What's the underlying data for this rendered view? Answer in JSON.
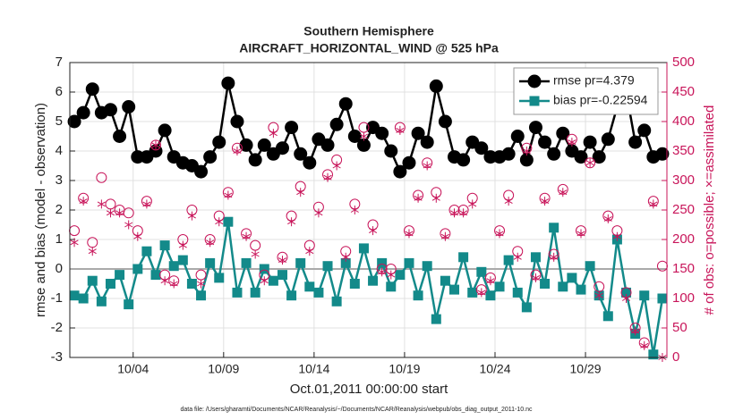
{
  "chart_data": {
    "type": "line",
    "title": "Southern Hemisphere",
    "subtitle": "AIRCRAFT_HORIZONTAL_WIND @ 525 hPa",
    "xlabel": "Oct.01,2011 00:00:00 start",
    "ylabel": "rmse and bias (model - observation)",
    "y2label": "# of obs: o=possible; ×=assimilated",
    "footnote": "data file: /Users/gharamti/Documents/NCAR/Reanalysis/~/Documents/NCAR/Reanalysis/webpub/obs_diag_output_2011-10.nc",
    "x": [
      0.75,
      1.25,
      1.75,
      2.25,
      2.75,
      3.25,
      3.75,
      4.25,
      4.75,
      5.25,
      5.75,
      6.25,
      6.75,
      7.25,
      7.75,
      8.25,
      8.75,
      9.25,
      9.75,
      10.25,
      10.75,
      11.25,
      11.75,
      12.25,
      12.75,
      13.25,
      13.75,
      14.25,
      14.75,
      15.25,
      15.75,
      16.25,
      16.75,
      17.25,
      17.75,
      18.25,
      18.75,
      19.25,
      19.75,
      20.25,
      20.75,
      21.25,
      21.75,
      22.25,
      22.75,
      23.25,
      23.75,
      24.25,
      24.75,
      25.25,
      25.75,
      26.25,
      26.75,
      27.25,
      27.75,
      28.25,
      28.75,
      29.25,
      29.75,
      30.25,
      30.75,
      31.25,
      31.75,
      32.25,
      32.75,
      33.25
    ],
    "xlim": [
      0.5,
      33.5
    ],
    "xticks": [
      {
        "value": 4,
        "label": "10/04"
      },
      {
        "value": 9,
        "label": "10/09"
      },
      {
        "value": 14,
        "label": "10/14"
      },
      {
        "value": 19,
        "label": "10/19"
      },
      {
        "value": 24,
        "label": "10/24"
      },
      {
        "value": 29,
        "label": "10/29"
      }
    ],
    "ylim": [
      -3,
      7
    ],
    "yticks": [
      -3,
      -2,
      -1,
      0,
      1,
      2,
      3,
      4,
      5,
      6,
      7
    ],
    "y2lim": [
      0,
      500
    ],
    "y2ticks": [
      0,
      50,
      100,
      150,
      200,
      250,
      300,
      350,
      400,
      450,
      500
    ],
    "grid": true,
    "legend": "upper right",
    "zero_line_color": "#aaaaaa",
    "y2_color": "#c8155a",
    "series": [
      {
        "name": "rmse pr=4.379",
        "color": "#000000",
        "marker": "circle-filled",
        "line": true,
        "values": [
          5.0,
          5.3,
          6.1,
          5.3,
          5.4,
          4.5,
          5.5,
          3.8,
          3.8,
          4.0,
          4.7,
          3.8,
          3.6,
          3.5,
          3.3,
          3.8,
          4.3,
          6.3,
          5.0,
          4.2,
          3.7,
          4.2,
          3.9,
          4.1,
          4.8,
          3.9,
          3.6,
          4.4,
          4.2,
          4.9,
          5.6,
          4.5,
          4.2,
          4.8,
          4.6,
          4.0,
          3.3,
          3.6,
          4.6,
          4.3,
          6.2,
          5.0,
          3.8,
          3.7,
          4.3,
          4.1,
          3.8,
          3.8,
          3.9,
          4.5,
          3.7,
          4.8,
          4.3,
          3.9,
          4.6,
          4.0,
          3.8,
          4.3,
          3.8,
          4.4,
          5.5,
          6.0,
          4.3,
          4.7,
          3.8,
          3.9
        ]
      },
      {
        "name": "bias pr=-0.22594",
        "color": "#138a8a",
        "marker": "square-filled",
        "line": true,
        "values": [
          -0.9,
          -1.0,
          -0.4,
          -1.1,
          -0.5,
          -0.2,
          -1.2,
          0.0,
          0.6,
          -0.2,
          0.8,
          0.1,
          0.3,
          -0.5,
          -0.9,
          0.2,
          -0.3,
          1.6,
          -0.8,
          0.2,
          -0.8,
          0.0,
          -0.4,
          -0.2,
          -0.9,
          0.2,
          -0.6,
          -0.8,
          0.1,
          -1.1,
          0.2,
          -0.5,
          0.7,
          -0.4,
          0.2,
          -0.6,
          -0.2,
          0.2,
          -0.9,
          0.1,
          -1.7,
          -0.4,
          -0.7,
          0.4,
          -0.8,
          -0.1,
          -0.9,
          -0.6,
          0.3,
          -0.8,
          -1.3,
          0.4,
          -0.5,
          1.4,
          -0.6,
          -0.3,
          -0.7,
          0.1,
          -0.9,
          -1.6,
          1.0,
          -0.8,
          -2.2,
          -0.9,
          -2.9,
          -1.0
        ]
      },
      {
        "color": "#c8155a",
        "marker": "circle-open",
        "line": false,
        "axis": "y2",
        "values": [
          215,
          270,
          195,
          305,
          260,
          250,
          245,
          215,
          265,
          360,
          140,
          130,
          200,
          250,
          140,
          200,
          240,
          280,
          355,
          210,
          190,
          140,
          390,
          170,
          240,
          290,
          190,
          255,
          310,
          335,
          180,
          260,
          390,
          225,
          150,
          150,
          390,
          215,
          275,
          330,
          280,
          210,
          250,
          250,
          270,
          115,
          135,
          215,
          275,
          180,
          355,
          140,
          270,
          175,
          285,
          370,
          215,
          330,
          120,
          240,
          215,
          110,
          50,
          25,
          265,
          155
        ]
      },
      {
        "color": "#c8155a",
        "marker": "asterisk",
        "line": false,
        "axis": "y2",
        "values": [
          195,
          265,
          180,
          260,
          245,
          245,
          225,
          205,
          260,
          360,
          130,
          125,
          190,
          240,
          125,
          195,
          230,
          275,
          350,
          205,
          175,
          130,
          380,
          165,
          230,
          280,
          180,
          245,
          305,
          325,
          170,
          250,
          375,
          215,
          145,
          140,
          385,
          210,
          270,
          325,
          270,
          205,
          245,
          245,
          260,
          110,
          130,
          210,
          265,
          170,
          350,
          135,
          265,
          170,
          280,
          365,
          210,
          330,
          105,
          235,
          205,
          100,
          45,
          20,
          260,
          0
        ]
      }
    ]
  }
}
